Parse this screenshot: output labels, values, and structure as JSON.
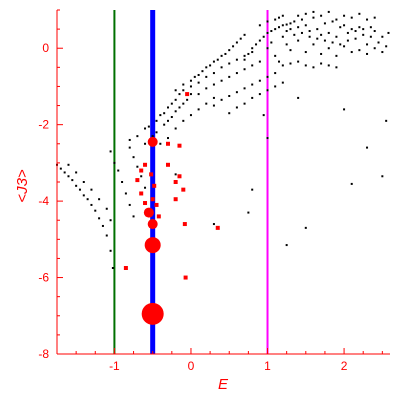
{
  "chart_data": {
    "type": "scatter",
    "title": "",
    "xlabel": "E",
    "ylabel": "<J3>",
    "xlim": [
      -1.75,
      2.6
    ],
    "ylim": [
      -8,
      1
    ],
    "xticks": [
      -1,
      0,
      1,
      2
    ],
    "yticks": [
      0,
      -2,
      -4,
      -6,
      -8
    ],
    "tick_labels_x": [
      "-1",
      "0",
      "1",
      "2"
    ],
    "tick_labels_y": [
      "0",
      "-2",
      "-4",
      "-6",
      "-8"
    ],
    "grid": false,
    "legend": "none",
    "colors": {
      "axis": "#ff0000",
      "black_points": "#000000",
      "red_points": "#ff0000"
    },
    "vertical_lines": [
      {
        "x": -1.0,
        "color": "#007000"
      },
      {
        "x": -0.5,
        "color": "#0000ff"
      },
      {
        "x": 1.0,
        "color": "#ff00ff"
      }
    ],
    "series": [
      {
        "color": "#000000",
        "points": [
          [
            -1.75,
            -3.05
          ],
          [
            -1.7,
            -3.15
          ],
          [
            -1.65,
            -3.25
          ],
          [
            -1.6,
            -3.35
          ],
          [
            -1.55,
            -3.45
          ],
          [
            -1.5,
            -3.6
          ],
          [
            -1.45,
            -3.7
          ],
          [
            -1.4,
            -3.85
          ],
          [
            -1.35,
            -3.95
          ],
          [
            -1.3,
            -4.1
          ],
          [
            -1.25,
            -4.25
          ],
          [
            -1.2,
            -4.45
          ],
          [
            -1.15,
            -4.65
          ],
          [
            -1.1,
            -4.9
          ],
          [
            -1.05,
            -5.3
          ],
          [
            -1.02,
            -5.75
          ],
          [
            -1.6,
            -3.05
          ],
          [
            -1.5,
            -3.25
          ],
          [
            -1.4,
            -3.5
          ],
          [
            -1.3,
            -3.7
          ],
          [
            -1.2,
            -3.95
          ],
          [
            -1.1,
            -4.2
          ],
          [
            -1.05,
            -4.5
          ],
          [
            -1.05,
            -2.7
          ],
          [
            -1.0,
            -3.0
          ],
          [
            -0.95,
            -3.2
          ],
          [
            -0.9,
            -3.5
          ],
          [
            -0.85,
            -3.8
          ],
          [
            -0.8,
            -4.1
          ],
          [
            -0.75,
            -4.4
          ],
          [
            -0.8,
            -2.6
          ],
          [
            -0.75,
            -2.85
          ],
          [
            -0.7,
            -3.1
          ],
          [
            -0.65,
            -3.35
          ],
          [
            -0.6,
            -3.65
          ],
          [
            -0.8,
            -2.4
          ],
          [
            -0.7,
            -2.3
          ],
          [
            -0.6,
            -2.1
          ],
          [
            -0.55,
            -2.05
          ],
          [
            -0.45,
            -1.9
          ],
          [
            -0.4,
            -1.75
          ],
          [
            -0.35,
            -1.7
          ],
          [
            -0.3,
            -1.55
          ],
          [
            -0.25,
            -1.45
          ],
          [
            -0.2,
            -1.35
          ],
          [
            -0.15,
            -1.2
          ],
          [
            -0.1,
            -1.1
          ],
          [
            -0.6,
            -2.5
          ],
          [
            -0.5,
            -2.3
          ],
          [
            -0.45,
            -2.2
          ],
          [
            -0.35,
            -2.0
          ],
          [
            -0.3,
            -1.9
          ],
          [
            -0.25,
            -1.8
          ],
          [
            -0.2,
            -1.65
          ],
          [
            -0.15,
            -1.55
          ],
          [
            -0.1,
            -1.45
          ],
          [
            -0.05,
            -1.35
          ],
          [
            0.0,
            -1.2
          ],
          [
            -0.4,
            -2.5
          ],
          [
            -0.3,
            -2.35
          ],
          [
            -0.2,
            -2.1
          ],
          [
            -0.1,
            -1.9
          ],
          [
            0.0,
            -1.75
          ],
          [
            0.1,
            -1.6
          ],
          [
            0.2,
            -1.45
          ],
          [
            0.3,
            -1.3
          ],
          [
            -0.2,
            -1.1
          ],
          [
            -0.1,
            -0.95
          ],
          [
            0.0,
            -0.85
          ],
          [
            0.05,
            -0.75
          ],
          [
            0.1,
            -0.7
          ],
          [
            0.15,
            -0.6
          ],
          [
            0.2,
            -0.5
          ],
          [
            0.25,
            -0.45
          ],
          [
            0.3,
            -0.35
          ],
          [
            0.35,
            -0.3
          ],
          [
            0.4,
            -0.2
          ],
          [
            0.45,
            -0.15
          ],
          [
            0.5,
            -0.05
          ],
          [
            0.55,
            0.05
          ],
          [
            0.6,
            0.15
          ],
          [
            0.65,
            0.25
          ],
          [
            0.7,
            0.35
          ],
          [
            0.0,
            -1.0
          ],
          [
            0.1,
            -0.9
          ],
          [
            0.2,
            -0.75
          ],
          [
            0.3,
            -0.65
          ],
          [
            0.4,
            -0.5
          ],
          [
            0.5,
            -0.4
          ],
          [
            0.6,
            -0.3
          ],
          [
            0.7,
            -0.2
          ],
          [
            0.8,
            -0.1
          ],
          [
            0.1,
            -1.2
          ],
          [
            0.2,
            -1.05
          ],
          [
            0.3,
            -0.95
          ],
          [
            0.4,
            -0.85
          ],
          [
            0.5,
            -0.75
          ],
          [
            0.6,
            -0.65
          ],
          [
            0.7,
            -0.55
          ],
          [
            0.8,
            -0.45
          ],
          [
            0.9,
            -0.35
          ],
          [
            0.3,
            -1.5
          ],
          [
            0.4,
            -1.35
          ],
          [
            0.5,
            -1.25
          ],
          [
            0.6,
            -1.15
          ],
          [
            0.7,
            -1.05
          ],
          [
            0.8,
            -0.95
          ],
          [
            0.9,
            -0.85
          ],
          [
            1.0,
            -0.75
          ],
          [
            1.1,
            -0.65
          ],
          [
            0.5,
            -1.7
          ],
          [
            0.6,
            -1.55
          ],
          [
            0.7,
            -1.45
          ],
          [
            0.8,
            -1.3
          ],
          [
            0.9,
            -1.2
          ],
          [
            1.0,
            -1.1
          ],
          [
            1.1,
            -1.0
          ],
          [
            1.2,
            -0.9
          ],
          [
            0.7,
            -0.3
          ],
          [
            0.75,
            -0.15
          ],
          [
            0.8,
            0.0
          ],
          [
            0.85,
            0.1
          ],
          [
            0.9,
            0.2
          ],
          [
            0.95,
            0.3
          ],
          [
            1.0,
            0.4
          ],
          [
            1.05,
            0.45
          ],
          [
            1.1,
            0.5
          ],
          [
            1.15,
            0.55
          ],
          [
            1.2,
            0.6
          ],
          [
            1.25,
            0.62
          ],
          [
            1.3,
            0.65
          ],
          [
            1.3,
            0.5
          ],
          [
            1.35,
            0.7
          ],
          [
            1.4,
            0.55
          ],
          [
            1.45,
            0.75
          ],
          [
            1.5,
            0.6
          ],
          [
            1.55,
            0.45
          ],
          [
            1.6,
            0.8
          ],
          [
            1.65,
            0.5
          ],
          [
            1.7,
            0.35
          ],
          [
            1.75,
            0.65
          ],
          [
            1.8,
            0.4
          ],
          [
            1.85,
            0.7
          ],
          [
            1.9,
            0.3
          ],
          [
            1.95,
            0.55
          ],
          [
            2.0,
            0.6
          ],
          [
            2.05,
            0.2
          ],
          [
            2.1,
            0.5
          ],
          [
            2.15,
            0.25
          ],
          [
            2.2,
            0.55
          ],
          [
            2.25,
            0.35
          ],
          [
            2.3,
            0.1
          ],
          [
            2.35,
            0.3
          ],
          [
            2.4,
            0.45
          ],
          [
            2.45,
            0.15
          ],
          [
            2.5,
            0.3
          ],
          [
            2.55,
            0.05
          ],
          [
            2.58,
            0.4
          ],
          [
            1.2,
            0.3
          ],
          [
            1.25,
            0.1
          ],
          [
            1.3,
            -0.05
          ],
          [
            1.4,
            0.2
          ],
          [
            1.5,
            -0.1
          ],
          [
            1.6,
            0.1
          ],
          [
            1.7,
            -0.15
          ],
          [
            1.8,
            0.0
          ],
          [
            1.9,
            -0.2
          ],
          [
            2.0,
            0.05
          ],
          [
            2.1,
            -0.1
          ],
          [
            2.2,
            -0.05
          ],
          [
            2.3,
            -0.15
          ],
          [
            2.4,
            0.0
          ],
          [
            2.5,
            -0.1
          ],
          [
            1.0,
            0.0
          ],
          [
            1.05,
            0.15
          ],
          [
            1.1,
            -0.2
          ],
          [
            1.15,
            -0.35
          ],
          [
            1.2,
            -0.45
          ],
          [
            1.3,
            -0.4
          ],
          [
            1.4,
            -0.35
          ],
          [
            1.5,
            -0.45
          ],
          [
            1.6,
            -0.5
          ],
          [
            1.7,
            -0.4
          ],
          [
            1.8,
            -0.45
          ],
          [
            1.9,
            -0.5
          ],
          [
            1.25,
            0.45
          ],
          [
            1.35,
            0.35
          ],
          [
            1.45,
            0.4
          ],
          [
            1.55,
            0.3
          ],
          [
            1.65,
            0.25
          ],
          [
            1.75,
            0.2
          ],
          [
            1.85,
            0.15
          ],
          [
            1.95,
            0.1
          ],
          [
            2.05,
            0.4
          ],
          [
            2.15,
            0.45
          ],
          [
            2.25,
            0.5
          ],
          [
            2.35,
            0.55
          ],
          [
            1.4,
            0.85
          ],
          [
            1.5,
            0.9
          ],
          [
            1.6,
            0.95
          ],
          [
            1.7,
            0.85
          ],
          [
            1.8,
            0.95
          ],
          [
            1.9,
            0.75
          ],
          [
            2.0,
            0.85
          ],
          [
            2.1,
            0.8
          ],
          [
            2.2,
            0.9
          ],
          [
            2.3,
            0.75
          ],
          [
            2.4,
            0.8
          ],
          [
            0.9,
            0.6
          ],
          [
            1.0,
            0.7
          ],
          [
            1.1,
            0.75
          ],
          [
            1.15,
            0.8
          ],
          [
            1.2,
            0.85
          ],
          [
            0.95,
            -1.75
          ],
          [
            1.4,
            -1.3
          ],
          [
            2.0,
            -1.6
          ],
          [
            2.3,
            -2.6
          ],
          [
            2.55,
            -1.9
          ],
          [
            2.5,
            -3.35
          ],
          [
            2.1,
            -3.55
          ],
          [
            1.0,
            -2.35
          ],
          [
            0.8,
            -3.7
          ],
          [
            0.75,
            -4.3
          ],
          [
            0.3,
            -4.6
          ],
          [
            -0.2,
            -3.3
          ],
          [
            1.25,
            -5.15
          ],
          [
            1.5,
            -4.7
          ]
        ]
      },
      {
        "color": "#ff0000",
        "points": [
          [
            -0.5,
            -2.45
          ],
          [
            -0.52,
            -3.3
          ],
          [
            -0.48,
            -3.6
          ],
          [
            -0.5,
            -3.95
          ],
          [
            -0.55,
            -4.3
          ],
          [
            -0.5,
            -4.6
          ],
          [
            -0.5,
            -5.15
          ],
          [
            -0.5,
            -6.95
          ],
          [
            -0.65,
            -3.8
          ],
          [
            -0.6,
            -4.05
          ],
          [
            -0.7,
            -3.45
          ],
          [
            -0.6,
            -3.05
          ],
          [
            -0.45,
            -4.1
          ],
          [
            -0.42,
            -4.4
          ],
          [
            -0.3,
            -3.05
          ],
          [
            -0.2,
            -3.5
          ],
          [
            -0.15,
            -3.35
          ],
          [
            -0.1,
            -3.7
          ],
          [
            -0.2,
            -3.95
          ],
          [
            -0.08,
            -4.6
          ],
          [
            -0.07,
            -6.0
          ],
          [
            -0.05,
            -1.2
          ],
          [
            -0.85,
            -5.75
          ],
          [
            -0.65,
            -3.2
          ],
          [
            -0.3,
            -2.5
          ],
          [
            -0.15,
            -2.55
          ],
          [
            0.35,
            -4.7
          ]
        ],
        "sizes": [
          2,
          1,
          1,
          1,
          2,
          2,
          3,
          4,
          1,
          1,
          1,
          1,
          1,
          1,
          1,
          1,
          1,
          1,
          1,
          1,
          1,
          1,
          1,
          1,
          1,
          1,
          1
        ]
      }
    ]
  }
}
